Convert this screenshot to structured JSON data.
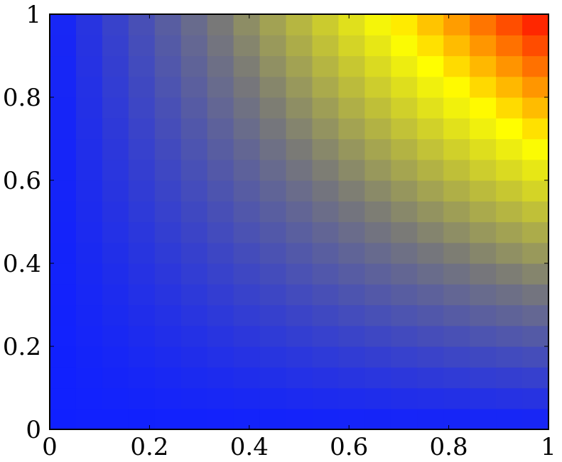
{
  "chart_data": {
    "type": "heatmap",
    "title": "",
    "xlabel": "",
    "ylabel": "",
    "xlim": [
      0,
      1
    ],
    "ylim": [
      0,
      1
    ],
    "grid": false,
    "colormap": [
      "#1020ff",
      "#787878",
      "#ffff00",
      "#ff0000"
    ],
    "cells_x": 19,
    "cells_y": 20,
    "value_function": "z = x*y (colour rises from blue at z=0 through grey and yellow to red at z=1)",
    "xticks": [
      {
        "value": 0,
        "label": "0"
      },
      {
        "value": 0.2,
        "label": "0.2"
      },
      {
        "value": 0.4,
        "label": "0.4"
      },
      {
        "value": 0.6,
        "label": "0.6"
      },
      {
        "value": 0.8,
        "label": "0.8"
      },
      {
        "value": 1,
        "label": "1"
      }
    ],
    "yticks": [
      {
        "value": 0,
        "label": "0"
      },
      {
        "value": 0.2,
        "label": "0.2"
      },
      {
        "value": 0.4,
        "label": "0.4"
      },
      {
        "value": 0.6,
        "label": "0.6"
      },
      {
        "value": 0.8,
        "label": "0.8"
      },
      {
        "value": 1,
        "label": "1"
      }
    ]
  }
}
